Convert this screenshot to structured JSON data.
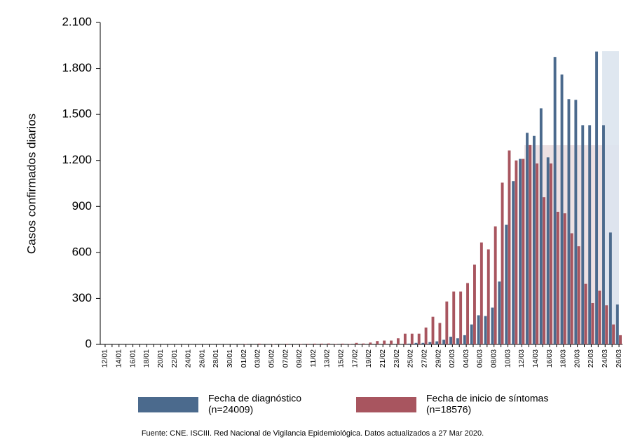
{
  "chart_data": {
    "type": "bar",
    "ylabel": "Casos confirmados diarios",
    "source": "Fuente: CNE. ISCIII. Red Nacional de Vigilancia Epidemiológica. Datos actualizados a 27 Mar 2020.",
    "categories": [
      "12/01",
      null,
      "14/01",
      null,
      "16/01",
      null,
      "18/01",
      null,
      "20/01",
      null,
      "22/01",
      null,
      "24/01",
      null,
      "26/01",
      null,
      "28/01",
      null,
      "30/01",
      null,
      "01/02",
      null,
      "03/02",
      null,
      "05/02",
      null,
      "07/02",
      null,
      "09/02",
      null,
      "11/02",
      null,
      "13/02",
      null,
      "15/02",
      null,
      "17/02",
      null,
      "19/02",
      null,
      "21/02",
      null,
      "23/02",
      null,
      "25/02",
      null,
      "27/02",
      null,
      "29/02",
      null,
      "02/03",
      null,
      "04/03",
      null,
      "06/03",
      null,
      "08/03",
      null,
      "10/03",
      null,
      "12/03",
      null,
      "14/03",
      null,
      "16/03",
      null,
      "18/03",
      null,
      "20/03",
      null,
      "22/03",
      null,
      "24/03",
      null,
      "26/03"
    ],
    "series": [
      {
        "name": "Fecha de diagnóstico",
        "sample": "(n=24009)",
        "color": "#4b6a8d",
        "values": [
          0,
          0,
          0,
          0,
          0,
          0,
          0,
          0,
          0,
          0,
          0,
          0,
          0,
          0,
          0,
          0,
          0,
          0,
          0,
          0,
          0,
          0,
          0,
          0,
          0,
          0,
          0,
          0,
          0,
          0,
          0,
          0,
          0,
          0,
          0,
          0,
          0,
          0,
          0,
          0,
          0,
          0,
          0,
          0,
          5,
          10,
          10,
          15,
          20,
          30,
          50,
          40,
          60,
          130,
          190,
          185,
          240,
          410,
          780,
          1065,
          1210,
          1380,
          1360,
          1540,
          1220,
          1875,
          1760,
          1600,
          1595,
          1430,
          1430,
          1910,
          1430,
          730,
          260
        ]
      },
      {
        "name": "Fecha de inicio de síntomas",
        "sample": "(n=18576)",
        "color": "#a8555f",
        "values": [
          0,
          0,
          0,
          0,
          0,
          0,
          0,
          0,
          0,
          0,
          0,
          0,
          0,
          0,
          0,
          0,
          0,
          0,
          0,
          0,
          3,
          0,
          5,
          0,
          2,
          0,
          4,
          0,
          3,
          4,
          5,
          5,
          6,
          3,
          5,
          3,
          10,
          6,
          12,
          22,
          25,
          25,
          40,
          70,
          70,
          70,
          110,
          180,
          140,
          280,
          345,
          345,
          400,
          520,
          665,
          620,
          770,
          1055,
          1265,
          1200,
          1210,
          1300,
          1180,
          960,
          1180,
          865,
          855,
          725,
          640,
          395,
          270,
          350,
          255,
          130,
          60
        ]
      }
    ],
    "ylim": [
      0,
      2100
    ],
    "yticks": [
      0,
      300,
      600,
      900,
      {
        "value": 1200,
        "label": "1.200"
      },
      {
        "value": 1500,
        "label": "1.500"
      },
      {
        "value": 1800,
        "label": "1.800"
      },
      {
        "value": 2100,
        "label": "2.100"
      }
    ]
  }
}
